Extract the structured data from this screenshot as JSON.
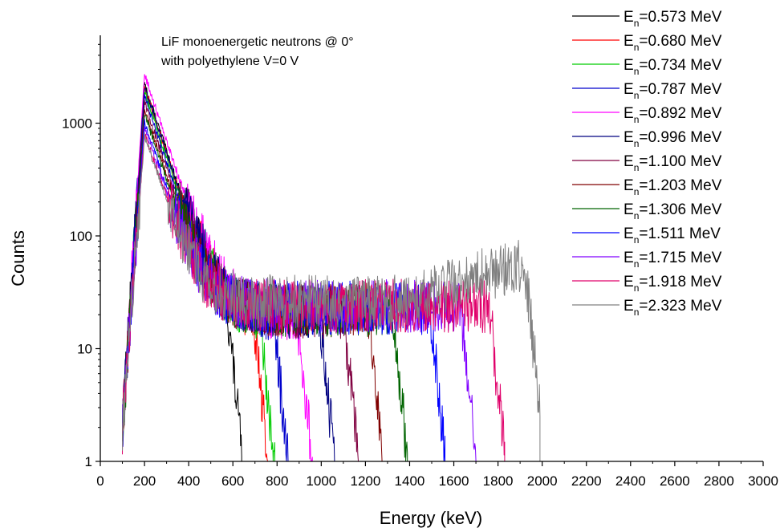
{
  "chart_data": {
    "type": "line",
    "annotation": [
      "LiF monoenergetic neutrons @ 0°",
      "with polyethylene V=0 V"
    ],
    "xlabel": "Energy (keV)",
    "ylabel": "Counts",
    "xlim": [
      0,
      3000
    ],
    "ylim": [
      1,
      5000
    ],
    "yscale": "log",
    "x_ticks": [
      "0",
      "200",
      "400",
      "600",
      "800",
      "1000",
      "1200",
      "1400",
      "1600",
      "1800",
      "2000",
      "2200",
      "2400",
      "2600",
      "2800",
      "3000"
    ],
    "y_ticks": [
      "1",
      "10",
      "100",
      "1000"
    ],
    "legend_position": "top-right",
    "series": [
      {
        "name": "En=0.573 MeV",
        "label_main": "E",
        "label_sub": "n",
        "label_rest": "=0.573 MeV",
        "color": "#000000",
        "peak_y": 2200,
        "plateau_y": 18,
        "cutoff_x": 640
      },
      {
        "name": "En=0.680 MeV",
        "label_main": "E",
        "label_sub": "n",
        "label_rest": "=0.680 MeV",
        "color": "#ff0000",
        "peak_y": 2100,
        "plateau_y": 19,
        "cutoff_x": 760
      },
      {
        "name": "En=0.734 MeV",
        "label_main": "E",
        "label_sub": "n",
        "label_rest": "=0.734 MeV",
        "color": "#00cc00",
        "peak_y": 1900,
        "plateau_y": 19,
        "cutoff_x": 790
      },
      {
        "name": "En=0.787 MeV",
        "label_main": "E",
        "label_sub": "n",
        "label_rest": "=0.787 MeV",
        "color": "#0000cc",
        "peak_y": 1700,
        "plateau_y": 20,
        "cutoff_x": 850
      },
      {
        "name": "En=0.892 MeV",
        "label_main": "E",
        "label_sub": "n",
        "label_rest": "=0.892 MeV",
        "color": "#ff00ff",
        "peak_y": 2700,
        "plateau_y": 20,
        "cutoff_x": 960
      },
      {
        "name": "En=0.996 MeV",
        "label_main": "E",
        "label_sub": "n",
        "label_rest": "=0.996 MeV",
        "color": "#000080",
        "peak_y": 2100,
        "plateau_y": 21,
        "cutoff_x": 1060
      },
      {
        "name": "En=1.100 MeV",
        "label_main": "E",
        "label_sub": "n",
        "label_rest": "=1.100 MeV",
        "color": "#800040",
        "peak_y": 1500,
        "plateau_y": 21,
        "cutoff_x": 1170
      },
      {
        "name": "En=1.203 MeV",
        "label_main": "E",
        "label_sub": "n",
        "label_rest": "=1.203 MeV",
        "color": "#800000",
        "peak_y": 1300,
        "plateau_y": 22,
        "cutoff_x": 1280
      },
      {
        "name": "En=1.306 MeV",
        "label_main": "E",
        "label_sub": "n",
        "label_rest": "=1.306 MeV",
        "color": "#006400",
        "peak_y": 1200,
        "plateau_y": 22,
        "cutoff_x": 1390
      },
      {
        "name": "En=1.511 MeV",
        "label_main": "E",
        "label_sub": "n",
        "label_rest": "=1.511 MeV",
        "color": "#0000ff",
        "peak_y": 1000,
        "plateau_y": 23,
        "cutoff_x": 1560
      },
      {
        "name": "En=1.715 MeV",
        "label_main": "E",
        "label_sub": "n",
        "label_rest": "=1.715 MeV",
        "color": "#8000ff",
        "peak_y": 900,
        "plateau_y": 24,
        "cutoff_x": 1700
      },
      {
        "name": "En=1.918 MeV",
        "label_main": "E",
        "label_sub": "n",
        "label_rest": "=1.918 MeV",
        "color": "#e0006a",
        "peak_y": 800,
        "plateau_y": 24,
        "cutoff_x": 1830
      },
      {
        "name": "En=2.323 MeV",
        "label_main": "E",
        "label_sub": "n",
        "label_rest": "=2.323 MeV",
        "color": "#808080",
        "peak_y": 750,
        "plateau_y": 26,
        "cutoff_x": 1990
      }
    ]
  }
}
